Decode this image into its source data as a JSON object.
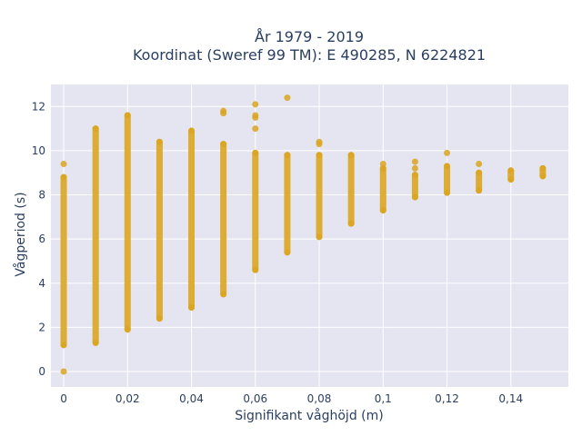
{
  "chart_data": {
    "type": "scatter",
    "title_lines": [
      "År 1979 - 2019",
      "Koordinat (Sweref 99 TM): E 490285, N 6224821"
    ],
    "xlabel": "Signifikant våghöjd (m)",
    "ylabel": "Vågperiod (s)",
    "xlim": [
      -0.004,
      0.158
    ],
    "ylim": [
      -0.7,
      13.0
    ],
    "xticks": [
      0,
      0.02,
      0.04,
      0.06,
      0.08,
      0.1,
      0.12,
      0.14
    ],
    "xtick_labels": [
      "0",
      "0,02",
      "0,04",
      "0,06",
      "0,08",
      "0,1",
      "0,12",
      "0,14"
    ],
    "yticks": [
      0,
      2,
      4,
      6,
      8,
      10,
      12
    ],
    "ytick_labels": [
      "0",
      "2",
      "4",
      "6",
      "8",
      "10",
      "12"
    ],
    "grid": true,
    "colors": {
      "marker": "#DAA520",
      "plot_bg": "#E5E5F2",
      "grid": "#FFFFFF",
      "paper": "#FFFFFF"
    },
    "columns": [
      {
        "x": 0,
        "range": [
          1.2,
          8.8
        ],
        "extra": [
          0,
          9.4
        ]
      },
      {
        "x": 0.01,
        "range": [
          1.3,
          11.0
        ],
        "extra": []
      },
      {
        "x": 0.02,
        "range": [
          1.9,
          11.6
        ],
        "extra": []
      },
      {
        "x": 0.03,
        "range": [
          2.4,
          10.4
        ],
        "extra": []
      },
      {
        "x": 0.04,
        "range": [
          2.9,
          10.9
        ],
        "extra": []
      },
      {
        "x": 0.05,
        "range": [
          3.5,
          10.3
        ],
        "extra": [
          11.7,
          11.8
        ]
      },
      {
        "x": 0.06,
        "range": [
          4.6,
          9.9
        ],
        "extra": [
          11.0,
          11.5,
          11.6,
          12.1
        ]
      },
      {
        "x": 0.07,
        "range": [
          5.4,
          9.8
        ],
        "extra": [
          12.4
        ]
      },
      {
        "x": 0.08,
        "range": [
          6.1,
          9.8
        ],
        "extra": [
          10.3,
          10.4
        ]
      },
      {
        "x": 0.09,
        "range": [
          6.7,
          9.8
        ],
        "extra": []
      },
      {
        "x": 0.1,
        "range": [
          7.3,
          9.2
        ],
        "extra": [
          9.4
        ]
      },
      {
        "x": 0.11,
        "range": [
          7.9,
          8.9
        ],
        "extra": [
          9.2,
          9.5
        ]
      },
      {
        "x": 0.12,
        "range": [
          8.1,
          9.3
        ],
        "extra": [
          9.9
        ]
      },
      {
        "x": 0.13,
        "range": [
          8.2,
          9.0
        ],
        "extra": [
          9.4
        ]
      },
      {
        "x": 0.14,
        "range": [
          8.7,
          9.1
        ],
        "extra": []
      },
      {
        "x": 0.15,
        "range": [
          8.85,
          9.2
        ],
        "extra": []
      }
    ]
  }
}
